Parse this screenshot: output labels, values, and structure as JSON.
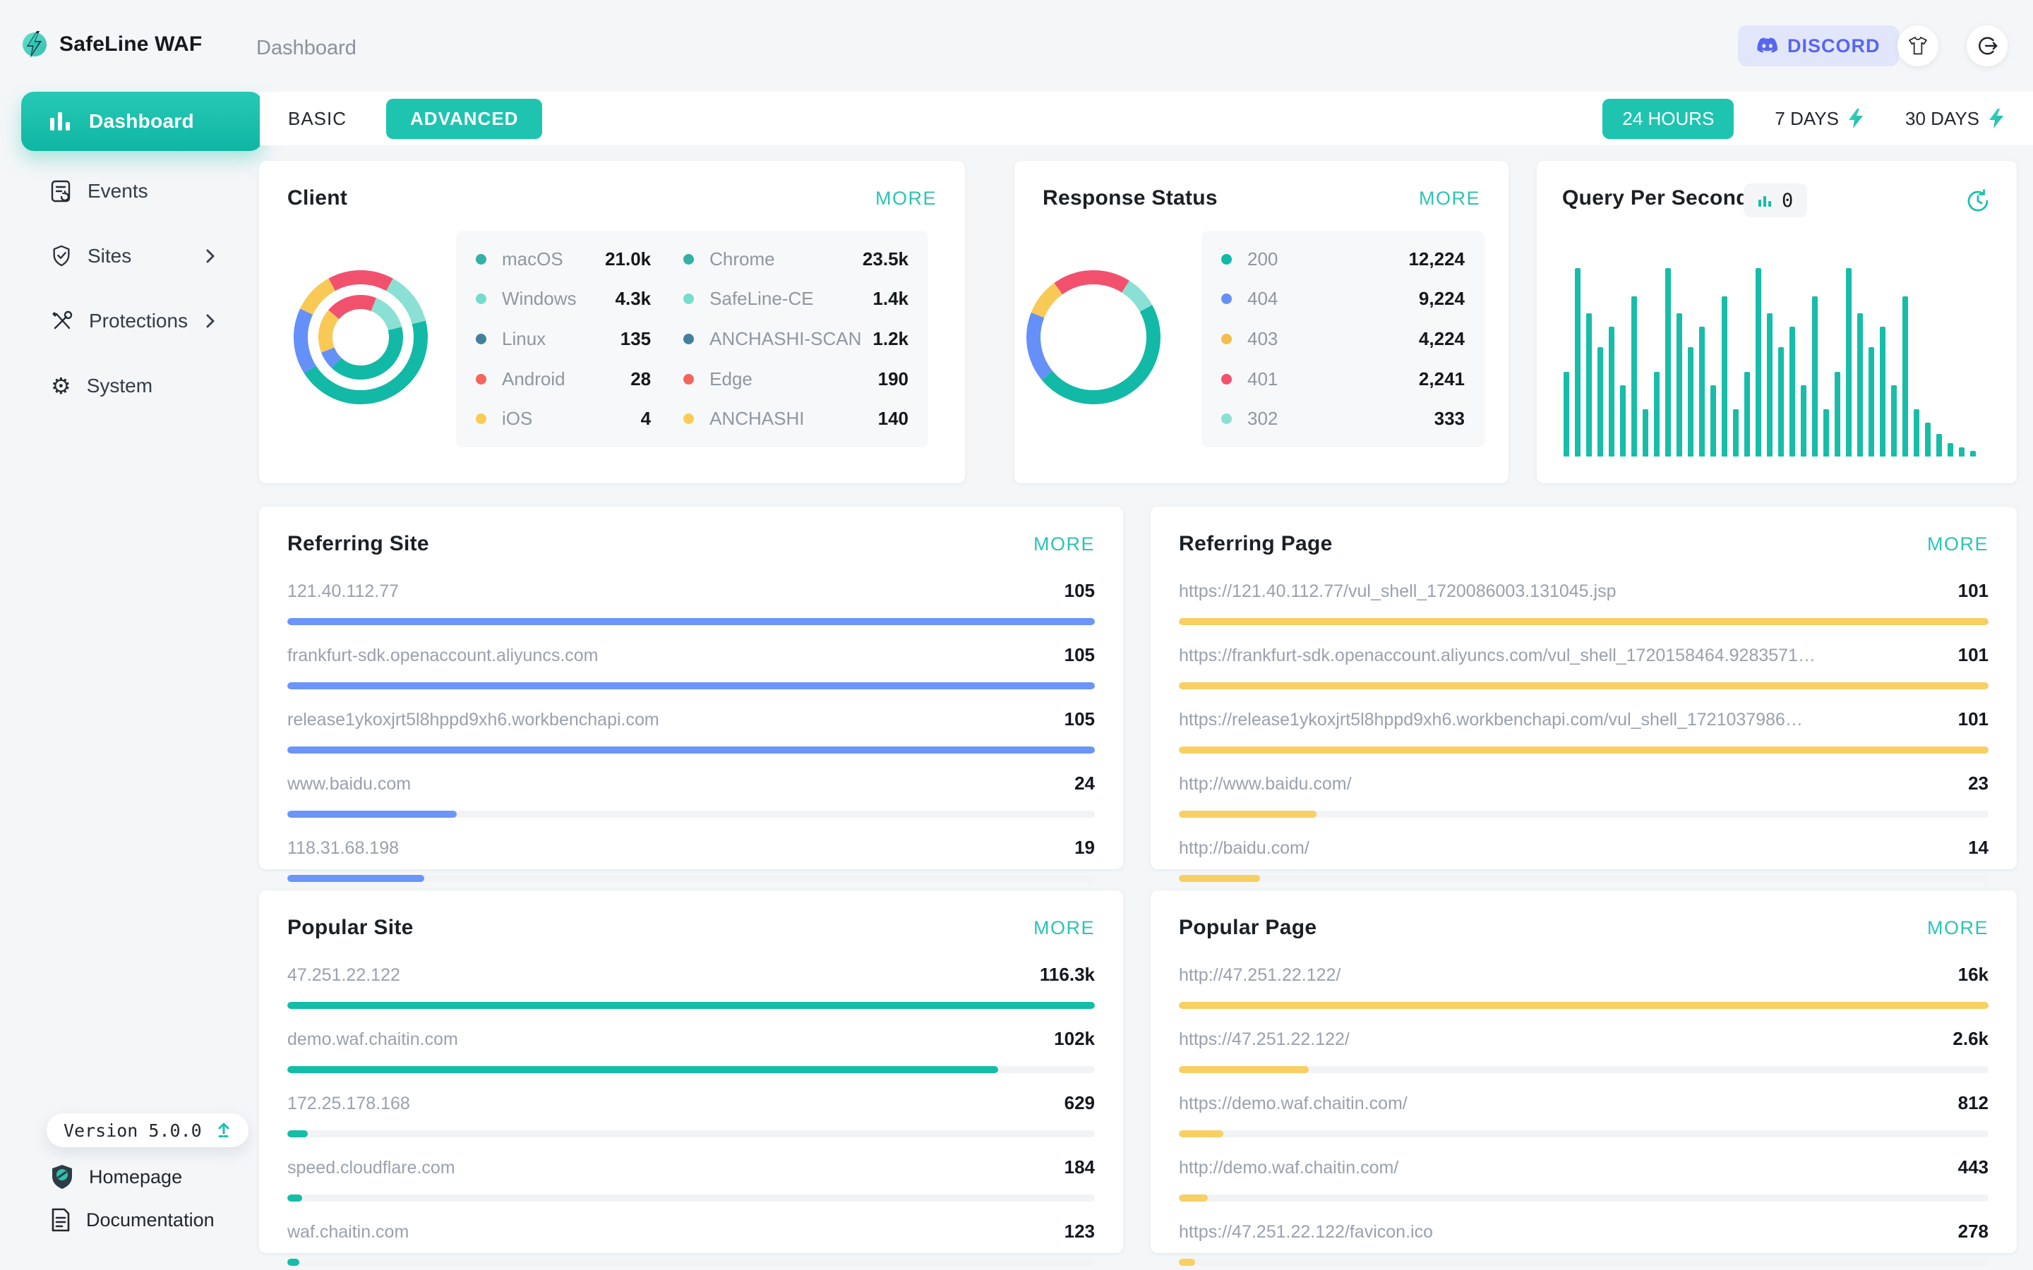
{
  "brand": {
    "name": "SafeLine WAF"
  },
  "topbar": {
    "title": "Dashboard",
    "discord_label": "DISCORD"
  },
  "sidebar": {
    "items": [
      {
        "label": "Dashboard",
        "active": true
      },
      {
        "label": "Events"
      },
      {
        "label": "Sites",
        "chevron": true
      },
      {
        "label": "Protections",
        "chevron": true
      },
      {
        "label": "System"
      }
    ],
    "version_label": "Version 5.0.0",
    "homepage_label": "Homepage",
    "documentation_label": "Documentation"
  },
  "toolbar": {
    "basic": "BASIC",
    "advanced": "ADVANCED",
    "range_24h": "24 HOURS",
    "range_7d": "7 DAYS",
    "range_30d": "30 DAYS"
  },
  "client": {
    "title": "Client",
    "more": "MORE",
    "os": [
      {
        "name": "macOS",
        "value": "21.0k",
        "color": "#34b1a7"
      },
      {
        "name": "Windows",
        "value": "4.3k",
        "color": "#76dccd"
      },
      {
        "name": "Linux",
        "value": "135",
        "color": "#44809c"
      },
      {
        "name": "Android",
        "value": "28",
        "color": "#f3655f"
      },
      {
        "name": "iOS",
        "value": "4",
        "color": "#f8cd52"
      }
    ],
    "browsers": [
      {
        "name": "Chrome",
        "value": "23.5k",
        "color": "#34b1a7"
      },
      {
        "name": "SafeLine-CE",
        "value": "1.4k",
        "color": "#76dccd"
      },
      {
        "name": "ANCHASHI-SCAN",
        "value": "1.2k",
        "color": "#44809c"
      },
      {
        "name": "Edge",
        "value": "190",
        "color": "#f3655f"
      },
      {
        "name": "ANCHASHI",
        "value": "140",
        "color": "#f8cd52"
      }
    ],
    "rings": {
      "outer": [
        {
          "color": "#f2516e",
          "pct": 8
        },
        {
          "color": "#8ae0d4",
          "pct": 13
        },
        {
          "color": "#12b9a6",
          "pct": 45
        },
        {
          "color": "#6590f8",
          "pct": 16
        },
        {
          "color": "#f8ca55",
          "pct": 10
        },
        {
          "color": "#f2516e",
          "pct": 8
        }
      ],
      "inner": [
        {
          "color": "#f2516e",
          "pct": 6
        },
        {
          "color": "#8ae0d4",
          "pct": 15
        },
        {
          "color": "#12b9a6",
          "pct": 41
        },
        {
          "color": "#6590f8",
          "pct": 7
        },
        {
          "color": "#f8ca55",
          "pct": 17
        },
        {
          "color": "#f2516e",
          "pct": 14
        }
      ]
    }
  },
  "response": {
    "title": "Response Status",
    "more": "MORE",
    "items": [
      {
        "code": "200",
        "value": "12,224",
        "color": "#12b9a6"
      },
      {
        "code": "404",
        "value": "9,224",
        "color": "#6590f8"
      },
      {
        "code": "403",
        "value": "4,224",
        "color": "#f5bd4d"
      },
      {
        "code": "401",
        "value": "2,241",
        "color": "#f2516e"
      },
      {
        "code": "302",
        "value": "333",
        "color": "#8ae0d4"
      }
    ],
    "ring": [
      {
        "color": "#f2516e",
        "pct": 9
      },
      {
        "color": "#8ae0d4",
        "pct": 8
      },
      {
        "color": "#12b9a6",
        "pct": 47
      },
      {
        "color": "#6590f8",
        "pct": 17
      },
      {
        "color": "#f8ca55",
        "pct": 9
      },
      {
        "color": "#f2516e",
        "pct": 10
      }
    ]
  },
  "qps": {
    "title": "Query Per Second",
    "badge_value": "0",
    "bar_color": "#17bda9",
    "bars": [
      45,
      100,
      76,
      58,
      69,
      38,
      85,
      25,
      45,
      100,
      76,
      58,
      69,
      38,
      85,
      25,
      45,
      100,
      76,
      58,
      69,
      38,
      85,
      25,
      45,
      100,
      76,
      58,
      69,
      38,
      85,
      25,
      18,
      12,
      7,
      5,
      3
    ]
  },
  "lists": {
    "referring_site": {
      "title": "Referring Site",
      "more": "MORE",
      "bar_color": "#6b95f8",
      "items": [
        {
          "label": "121.40.112.77",
          "value": "105",
          "pct": 100
        },
        {
          "label": "frankfurt-sdk.openaccount.aliyuncs.com",
          "value": "105",
          "pct": 100
        },
        {
          "label": "release1ykoxjrt5l8hppd9xh6.workbenchapi.com",
          "value": "105",
          "pct": 100
        },
        {
          "label": "www.baidu.com",
          "value": "24",
          "pct": 21
        },
        {
          "label": "118.31.68.198",
          "value": "19",
          "pct": 17
        }
      ]
    },
    "referring_page": {
      "title": "Referring Page",
      "more": "MORE",
      "bar_color": "#f7cf63",
      "items": [
        {
          "label": "https://121.40.112.77/vul_shell_1720086003.131045.jsp",
          "value": "101",
          "pct": 100
        },
        {
          "label": "https://frankfurt-sdk.openaccount.aliyuncs.com/vul_shell_1720158464.9283571…",
          "value": "101",
          "pct": 100
        },
        {
          "label": "https://release1ykoxjrt5l8hppd9xh6.workbenchapi.com/vul_shell_1721037986…",
          "value": "101",
          "pct": 100
        },
        {
          "label": "http://www.baidu.com/",
          "value": "23",
          "pct": 17
        },
        {
          "label": "http://baidu.com/",
          "value": "14",
          "pct": 10
        }
      ]
    },
    "popular_site": {
      "title": "Popular Site",
      "more": "MORE",
      "bar_color": "#14bda7",
      "items": [
        {
          "label": "47.251.22.122",
          "value": "116.3k",
          "pct": 100
        },
        {
          "label": "demo.waf.chaitin.com",
          "value": "102k",
          "pct": 88
        },
        {
          "label": "172.25.178.168",
          "value": "629",
          "pct": 2.5
        },
        {
          "label": "speed.cloudflare.com",
          "value": "184",
          "pct": 1.8
        },
        {
          "label": "waf.chaitin.com",
          "value": "123",
          "pct": 1.5
        }
      ]
    },
    "popular_page": {
      "title": "Popular Page",
      "more": "MORE",
      "bar_color": "#f7cf63",
      "items": [
        {
          "label": "http://47.251.22.122/",
          "value": "16k",
          "pct": 100
        },
        {
          "label": "https://47.251.22.122/",
          "value": "2.6k",
          "pct": 16
        },
        {
          "label": "https://demo.waf.chaitin.com/",
          "value": "812",
          "pct": 5.5
        },
        {
          "label": "http://demo.waf.chaitin.com/",
          "value": "443",
          "pct": 3.6
        },
        {
          "label": "https://47.251.22.122/favicon.ico",
          "value": "278",
          "pct": 2
        }
      ]
    }
  },
  "chart_data": [
    {
      "type": "pie",
      "title": "Client — OS (inner ring)",
      "categories": [
        "macOS",
        "Windows",
        "Linux",
        "Android",
        "iOS"
      ],
      "values": [
        21000,
        4300,
        135,
        28,
        4
      ],
      "value_labels": [
        "21.0k",
        "4.3k",
        "135",
        "28",
        "4"
      ],
      "legend_position": "right"
    },
    {
      "type": "pie",
      "title": "Client — User Agent (outer ring)",
      "categories": [
        "Chrome",
        "SafeLine-CE",
        "ANCHASHI-SCAN",
        "Edge",
        "ANCHASHI"
      ],
      "values": [
        23500,
        1400,
        1200,
        190,
        140
      ],
      "value_labels": [
        "23.5k",
        "1.4k",
        "1.2k",
        "190",
        "140"
      ],
      "legend_position": "right"
    },
    {
      "type": "pie",
      "title": "Response Status",
      "categories": [
        "200",
        "404",
        "403",
        "401",
        "302"
      ],
      "values": [
        12224,
        9224,
        4224,
        2241,
        333
      ],
      "value_labels": [
        "12,224",
        "9,224",
        "4,224",
        "2,241",
        "333"
      ],
      "legend_position": "right"
    },
    {
      "type": "bar",
      "title": "Query Per Second",
      "current_value": 0,
      "values": [
        45,
        100,
        76,
        58,
        69,
        38,
        85,
        25,
        45,
        100,
        76,
        58,
        69,
        38,
        85,
        25,
        45,
        100,
        76,
        58,
        69,
        38,
        85,
        25,
        45,
        100,
        76,
        58,
        69,
        38,
        85,
        25,
        18,
        12,
        7,
        5,
        3
      ],
      "note": "bar heights estimated as % of chart height; no axis labels visible",
      "grid": false,
      "legend": false
    },
    {
      "type": "bar",
      "orientation": "horizontal",
      "title": "Referring Site",
      "categories": [
        "121.40.112.77",
        "frankfurt-sdk.openaccount.aliyuncs.com",
        "release1ykoxjrt5l8hppd9xh6.workbenchapi.com",
        "www.baidu.com",
        "118.31.68.198"
      ],
      "values": [
        105,
        105,
        105,
        24,
        19
      ]
    },
    {
      "type": "bar",
      "orientation": "horizontal",
      "title": "Referring Page",
      "categories": [
        "https://121.40.112.77/vul_shell_1720086003.131045.jsp",
        "https://frankfurt-sdk.openaccount.aliyuncs.com/vul_shell_1720158464.9283571…",
        "https://release1ykoxjrt5l8hppd9xh6.workbenchapi.com/vul_shell_1721037986…",
        "http://www.baidu.com/",
        "http://baidu.com/"
      ],
      "values": [
        101,
        101,
        101,
        23,
        14
      ]
    },
    {
      "type": "bar",
      "orientation": "horizontal",
      "title": "Popular Site",
      "categories": [
        "47.251.22.122",
        "demo.waf.chaitin.com",
        "172.25.178.168",
        "speed.cloudflare.com",
        "waf.chaitin.com"
      ],
      "values": [
        116300,
        102000,
        629,
        184,
        123
      ]
    },
    {
      "type": "bar",
      "orientation": "horizontal",
      "title": "Popular Page",
      "categories": [
        "http://47.251.22.122/",
        "https://47.251.22.122/",
        "https://demo.waf.chaitin.com/",
        "http://demo.waf.chaitin.com/",
        "https://47.251.22.122/favicon.ico"
      ],
      "values": [
        16000,
        2600,
        812,
        443,
        278
      ]
    }
  ]
}
